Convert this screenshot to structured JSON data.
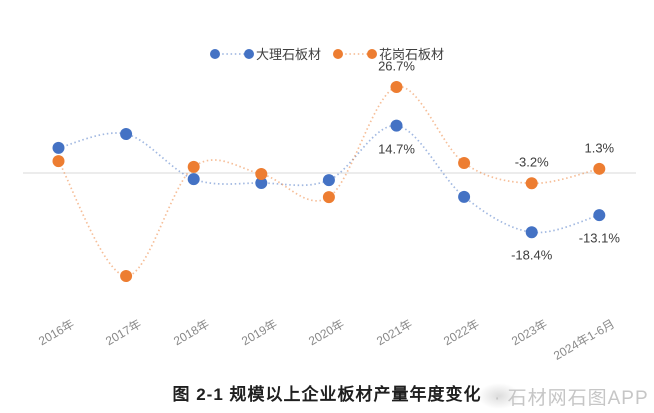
{
  "page": {
    "background": "#ffffff"
  },
  "legend": {
    "items": [
      {
        "label": "大理石板材",
        "color": "#4472c4"
      },
      {
        "label": "花岗石板材",
        "color": "#ed7d31"
      }
    ]
  },
  "chart_data": {
    "type": "line",
    "line_style": "dotted-smooth",
    "unit": "%",
    "categories": [
      "2016年",
      "2017年",
      "2018年",
      "2019年",
      "2020年",
      "2021年",
      "2022年",
      "2023年",
      "2024年1-6月"
    ],
    "series": [
      {
        "name": "大理石板材",
        "color": "#4472c4",
        "values": [
          7.8,
          12.1,
          -1.9,
          -3.1,
          -2.2,
          14.7,
          -7.4,
          -18.4,
          -13.1
        ]
      },
      {
        "name": "花岗石板材",
        "color": "#ed7d31",
        "values": [
          3.7,
          -32.0,
          1.9,
          -0.3,
          -7.5,
          26.7,
          3.1,
          -3.2,
          1.3
        ]
      }
    ],
    "point_labels": [
      {
        "series": 0,
        "index": 5,
        "text": "14.7%",
        "position": "below"
      },
      {
        "series": 0,
        "index": 7,
        "text": "-18.4%",
        "position": "below"
      },
      {
        "series": 0,
        "index": 8,
        "text": "-13.1%",
        "position": "below"
      },
      {
        "series": 1,
        "index": 5,
        "text": "26.7%",
        "position": "above"
      },
      {
        "series": 1,
        "index": 7,
        "text": "-3.2%",
        "position": "above"
      },
      {
        "series": 1,
        "index": 8,
        "text": "1.3%",
        "position": "above"
      }
    ],
    "ylim": [
      -35,
      30
    ],
    "baseline": 0,
    "grid": "zero-line-only",
    "gridline_color": "#d9d9d9",
    "legend_position": "top-center",
    "title": "图 2-1 规模以上企业板材产量年度变化",
    "xlabel": "",
    "ylabel": ""
  },
  "footer": {
    "title": "图 2-1 规模以上企业板材产量年度变化",
    "watermark": "· 石材网石图APP"
  }
}
